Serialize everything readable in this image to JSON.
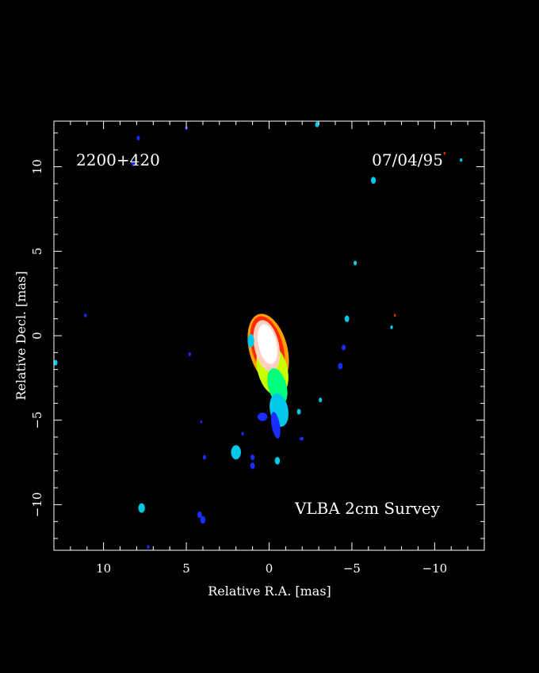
{
  "source_name": "2200+420",
  "epoch": "07/04/95",
  "survey_label": "VLBA 2cm Survey",
  "x_axis": {
    "label": "Relative R.A. [mas]",
    "range": [
      13,
      -13
    ],
    "major_ticks": [
      10,
      5,
      0,
      -5,
      -10
    ],
    "tick_labels": [
      "10",
      "5",
      "0",
      "−5",
      "−10"
    ],
    "minor_step": 1
  },
  "y_axis": {
    "label": "Relative Decl. [mas]",
    "range": [
      -12.7,
      12.7
    ],
    "major_ticks": [
      10,
      5,
      0,
      -5,
      -10
    ],
    "tick_labels": [
      "10",
      "5",
      "0",
      "−5",
      "−10"
    ],
    "minor_step": 1
  },
  "colormap": [
    "#1a2cff",
    "#00c8e6",
    "#00ff7a",
    "#c8ff00",
    "#ff2a00",
    "#ffa000",
    "#ffffff"
  ],
  "image": {
    "core_position_mas": [
      0,
      -0.5
    ],
    "jet_direction": "south-southwest",
    "emission_blobs": [
      {
        "ra": 0.1,
        "dec": -0.5,
        "rx": 0.55,
        "ry": 1.2,
        "rot": -12,
        "color": "#ffffff"
      },
      {
        "ra": 0.15,
        "dec": -0.6,
        "rx": 0.75,
        "ry": 1.55,
        "rot": -12,
        "color": "#ffd0c0"
      },
      {
        "ra": 0.1,
        "dec": -0.7,
        "rx": 0.95,
        "ry": 1.9,
        "rot": -15,
        "color": "#ff2a00"
      },
      {
        "ra": 0.05,
        "dec": -0.8,
        "rx": 1.15,
        "ry": 2.15,
        "rot": -15,
        "color": "#ffa000"
      },
      {
        "ra": -0.2,
        "dec": -2.0,
        "rx": 0.9,
        "ry": 1.6,
        "rot": -15,
        "color": "#c8ff00"
      },
      {
        "ra": -0.5,
        "dec": -3.0,
        "rx": 0.55,
        "ry": 1.1,
        "rot": -15,
        "color": "#00ff7a"
      },
      {
        "ra": -0.6,
        "dec": -4.4,
        "rx": 0.55,
        "ry": 1.0,
        "rot": -10,
        "color": "#00c8e6"
      },
      {
        "ra": -0.4,
        "dec": -5.3,
        "rx": 0.25,
        "ry": 0.8,
        "rot": -10,
        "color": "#1a2cff"
      },
      {
        "ra": 1.1,
        "dec": -0.3,
        "rx": 0.2,
        "ry": 0.4,
        "rot": 0,
        "color": "#00c8e6"
      },
      {
        "ra": 0.4,
        "dec": -4.8,
        "rx": 0.3,
        "ry": 0.25,
        "rot": 0,
        "color": "#1a2cff"
      }
    ],
    "noise_spots": [
      {
        "ra": 8.2,
        "dec": 10.2,
        "r": 0.12,
        "color": "#1a2cff"
      },
      {
        "ra": 7.9,
        "dec": 11.7,
        "r": 0.1,
        "color": "#1a2cff"
      },
      {
        "ra": 5.0,
        "dec": 12.3,
        "r": 0.08,
        "color": "#1a2cff"
      },
      {
        "ra": -2.9,
        "dec": 12.5,
        "r": 0.12,
        "color": "#00c8e6"
      },
      {
        "ra": -6.3,
        "dec": 9.2,
        "r": 0.15,
        "color": "#00c8e6"
      },
      {
        "ra": -11.6,
        "dec": 10.4,
        "r": 0.08,
        "color": "#00c8e6"
      },
      {
        "ra": -10.6,
        "dec": 10.8,
        "r": 0.06,
        "color": "#ff2a00"
      },
      {
        "ra": -5.2,
        "dec": 4.3,
        "r": 0.1,
        "color": "#00c8e6"
      },
      {
        "ra": -4.7,
        "dec": 1.0,
        "r": 0.14,
        "color": "#00c8e6"
      },
      {
        "ra": -7.4,
        "dec": 0.5,
        "r": 0.08,
        "color": "#00c8e6"
      },
      {
        "ra": -7.6,
        "dec": 1.2,
        "r": 0.06,
        "color": "#ff2a00"
      },
      {
        "ra": 11.1,
        "dec": 1.2,
        "r": 0.08,
        "color": "#1a2cff"
      },
      {
        "ra": 12.9,
        "dec": -1.6,
        "r": 0.12,
        "color": "#00c8e6"
      },
      {
        "ra": 4.8,
        "dec": -1.1,
        "r": 0.08,
        "color": "#1a2cff"
      },
      {
        "ra": -4.5,
        "dec": -0.7,
        "r": 0.12,
        "color": "#1a2cff"
      },
      {
        "ra": -4.3,
        "dec": -1.8,
        "r": 0.14,
        "color": "#1a2cff"
      },
      {
        "ra": -3.1,
        "dec": -3.8,
        "r": 0.1,
        "color": "#00c8e6"
      },
      {
        "ra": -1.8,
        "dec": -4.5,
        "r": 0.12,
        "color": "#00c8e6"
      },
      {
        "ra": -2.0,
        "dec": -6.1,
        "r": 0.08,
        "color": "#1a2cff"
      },
      {
        "ra": 4.1,
        "dec": -5.1,
        "r": 0.06,
        "color": "#1a2cff"
      },
      {
        "ra": 2.0,
        "dec": -6.9,
        "r": 0.3,
        "color": "#00c8e6"
      },
      {
        "ra": 1.0,
        "dec": -7.2,
        "r": 0.12,
        "color": "#1a2cff"
      },
      {
        "ra": 1.0,
        "dec": -7.7,
        "r": 0.14,
        "color": "#1a2cff"
      },
      {
        "ra": 1.6,
        "dec": -5.8,
        "r": 0.08,
        "color": "#1a2cff"
      },
      {
        "ra": -0.5,
        "dec": -7.4,
        "r": 0.16,
        "color": "#00c8e6"
      },
      {
        "ra": 3.9,
        "dec": -7.2,
        "r": 0.1,
        "color": "#1a2cff"
      },
      {
        "ra": 7.7,
        "dec": -10.2,
        "r": 0.2,
        "color": "#00c8e6"
      },
      {
        "ra": 4.2,
        "dec": -10.6,
        "r": 0.14,
        "color": "#1a2cff"
      },
      {
        "ra": 4.0,
        "dec": -10.9,
        "r": 0.16,
        "color": "#1a2cff"
      },
      {
        "ra": 7.3,
        "dec": -12.5,
        "r": 0.08,
        "color": "#1a2cff"
      },
      {
        "ra": -1.9,
        "dec": -6.1,
        "r": 0.06,
        "color": "#1a2cff"
      }
    ]
  }
}
